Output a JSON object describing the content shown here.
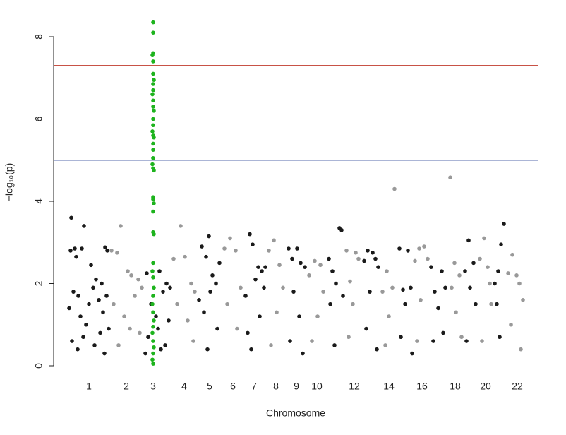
{
  "chart_data": {
    "type": "scatter",
    "x_label": "Chromosome",
    "y_label": "−log₁₀(p)",
    "xlim": [
      -20,
      666
    ],
    "ylim": [
      0,
      8.4
    ],
    "yticks": [
      0,
      2,
      4,
      6,
      8
    ],
    "xticks": [
      {
        "value": 30,
        "label": "1"
      },
      {
        "value": 83,
        "label": "2"
      },
      {
        "value": 121,
        "label": "3"
      },
      {
        "value": 165,
        "label": "4"
      },
      {
        "value": 201,
        "label": "5"
      },
      {
        "value": 234,
        "label": "6"
      },
      {
        "value": 264,
        "label": "7"
      },
      {
        "value": 295,
        "label": "8"
      },
      {
        "value": 324,
        "label": "9"
      },
      {
        "value": 353,
        "label": "10"
      },
      {
        "value": 406,
        "label": "12"
      },
      {
        "value": 455,
        "label": "14"
      },
      {
        "value": 502,
        "label": "16"
      },
      {
        "value": 549,
        "label": "18"
      },
      {
        "value": 592,
        "label": "20"
      },
      {
        "value": 637,
        "label": "22"
      }
    ],
    "hlines": [
      {
        "value": 7.3,
        "color": "#c0392b"
      },
      {
        "value": 5.0,
        "color": "#1f3a93"
      }
    ],
    "series": [
      {
        "color": "#1a1a1a",
        "x": [
          5,
          10,
          4,
          12,
          23,
          20,
          33,
          53,
          56,
          40,
          2,
          8,
          15,
          18,
          26,
          30,
          36,
          44,
          48,
          50,
          55,
          58,
          6,
          14,
          22,
          38,
          46,
          52,
          112,
          118,
          125,
          130,
          135,
          140,
          145,
          114,
          128,
          138,
          143,
          110,
          132,
          190,
          196,
          200,
          205,
          210,
          215,
          186,
          193,
          202,
          212,
          198,
          258,
          262,
          270,
          275,
          280,
          252,
          266,
          278,
          255,
          272,
          260,
          313,
          318,
          325,
          330,
          336,
          320,
          328,
          315,
          333,
          370,
          375,
          385,
          388,
          380,
          372,
          390,
          378,
          420,
          425,
          432,
          436,
          440,
          428,
          423,
          438,
          470,
          475,
          482,
          486,
          478,
          472,
          488,
          515,
          520,
          530,
          535,
          525,
          518,
          532,
          563,
          568,
          575,
          578,
          570,
          565,
          605,
          610,
          614,
          618,
          608,
          612
        ],
        "values": [
          3.6,
          2.85,
          2.8,
          2.65,
          3.4,
          2.85,
          2.45,
          2.88,
          2.8,
          2.1,
          1.4,
          1.8,
          1.7,
          1.2,
          1.0,
          1.5,
          1.9,
          1.6,
          2.0,
          1.3,
          1.7,
          0.9,
          0.6,
          0.4,
          0.7,
          0.5,
          0.8,
          0.3,
          2.25,
          1.5,
          1.2,
          2.3,
          1.8,
          2.0,
          1.9,
          0.7,
          0.9,
          0.5,
          1.1,
          0.3,
          0.4,
          2.9,
          2.65,
          3.15,
          2.2,
          2.0,
          2.5,
          1.6,
          1.3,
          1.8,
          0.9,
          0.4,
          3.2,
          2.95,
          2.4,
          2.3,
          2.4,
          1.7,
          2.1,
          1.9,
          0.8,
          1.2,
          0.4,
          2.85,
          2.6,
          2.85,
          2.5,
          2.4,
          1.8,
          1.2,
          0.6,
          0.3,
          2.6,
          2.3,
          3.35,
          3.3,
          2.0,
          1.5,
          1.7,
          0.5,
          2.55,
          2.8,
          2.75,
          2.6,
          2.4,
          1.8,
          0.9,
          0.4,
          2.85,
          1.85,
          2.8,
          1.9,
          1.5,
          0.7,
          0.3,
          2.4,
          1.8,
          2.3,
          1.9,
          1.4,
          0.6,
          0.8,
          2.3,
          3.05,
          2.5,
          1.5,
          1.9,
          0.6,
          2.0,
          2.3,
          2.95,
          3.45,
          1.5,
          0.7
        ]
      },
      {
        "color": "#999999",
        "x": [
          62,
          70,
          75,
          85,
          90,
          100,
          105,
          65,
          80,
          95,
          102,
          72,
          88,
          150,
          160,
          166,
          175,
          180,
          155,
          170,
          178,
          222,
          230,
          238,
          245,
          226,
          240,
          285,
          292,
          300,
          305,
          296,
          288,
          342,
          350,
          358,
          362,
          354,
          346,
          395,
          400,
          408,
          412,
          404,
          398,
          446,
          452,
          463,
          460,
          455,
          450,
          492,
          498,
          505,
          510,
          500,
          495,
          542,
          548,
          544,
          555,
          550,
          558,
          584,
          590,
          595,
          598,
          600,
          587,
          624,
          630,
          636,
          640,
          645,
          628,
          642
        ],
        "values": [
          2.8,
          2.75,
          3.4,
          2.3,
          2.2,
          2.1,
          1.9,
          1.5,
          1.2,
          1.7,
          0.8,
          0.5,
          0.9,
          2.6,
          3.4,
          2.65,
          2.0,
          1.8,
          1.5,
          1.1,
          0.6,
          2.85,
          3.1,
          2.8,
          1.9,
          1.5,
          0.9,
          2.8,
          3.05,
          2.45,
          1.9,
          1.3,
          0.5,
          2.2,
          2.55,
          2.45,
          1.8,
          1.2,
          0.6,
          2.8,
          2.05,
          2.75,
          2.6,
          1.5,
          0.7,
          1.8,
          2.3,
          4.3,
          1.9,
          1.2,
          0.5,
          2.55,
          2.85,
          2.9,
          2.6,
          1.6,
          0.6,
          4.58,
          2.5,
          1.9,
          2.2,
          1.3,
          0.7,
          2.6,
          3.1,
          2.4,
          2.0,
          1.5,
          0.6,
          2.25,
          2.7,
          2.2,
          2.0,
          1.6,
          1.0,
          0.4
        ]
      },
      {
        "color": "#1db31d",
        "x": [
          121,
          121,
          121,
          120,
          121,
          121,
          122,
          121,
          121,
          120,
          121,
          121,
          122,
          121,
          121,
          120,
          121,
          122,
          121,
          121,
          121,
          120,
          121,
          122,
          121,
          121,
          122,
          121,
          121,
          122,
          121,
          120,
          121,
          122,
          121,
          120,
          121,
          122,
          121,
          120,
          121,
          122,
          121,
          120,
          121
        ],
        "values": [
          8.35,
          8.1,
          7.6,
          7.55,
          7.4,
          7.1,
          6.95,
          6.85,
          6.7,
          6.6,
          6.45,
          6.3,
          6.2,
          6.0,
          5.85,
          5.7,
          5.6,
          5.55,
          5.4,
          5.25,
          5.05,
          4.9,
          4.8,
          4.75,
          4.1,
          4.05,
          3.95,
          3.75,
          3.25,
          3.2,
          2.5,
          2.3,
          2.15,
          1.9,
          1.7,
          1.5,
          1.3,
          1.1,
          0.95,
          0.8,
          0.6,
          0.45,
          0.3,
          0.15,
          0.05
        ]
      }
    ]
  }
}
